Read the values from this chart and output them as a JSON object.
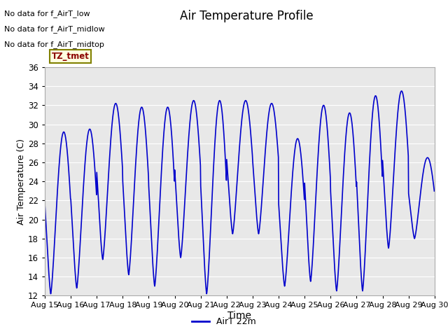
{
  "title": "Air Temperature Profile",
  "xlabel": "Time",
  "ylabel": "Air Temperature (C)",
  "ylim": [
    12,
    36
  ],
  "yticks": [
    12,
    14,
    16,
    18,
    20,
    22,
    24,
    26,
    28,
    30,
    32,
    34,
    36
  ],
  "line_color": "#0000cc",
  "line_width": 1.2,
  "bg_axes": "#e8e8e8",
  "grid_color": "#ffffff",
  "legend_label": "AirT 22m",
  "no_data_texts": [
    "No data for f_AirT_low",
    "No data for f_AirT_midlow",
    "No data for f_AirT_midtop"
  ],
  "tz_label": "TZ_tmet",
  "day_mins": [
    12.2,
    12.8,
    15.8,
    14.2,
    13.0,
    16.0,
    12.2,
    18.5,
    18.5,
    13.0,
    13.5,
    12.5,
    12.5,
    17.0,
    18.0
  ],
  "day_maxs": [
    29.2,
    29.5,
    32.2,
    31.8,
    31.8,
    32.5,
    32.5,
    32.5,
    32.2,
    28.5,
    32.0,
    31.2,
    33.0,
    33.5,
    26.5
  ],
  "min_hour": 5.5,
  "max_hour": 14.0
}
